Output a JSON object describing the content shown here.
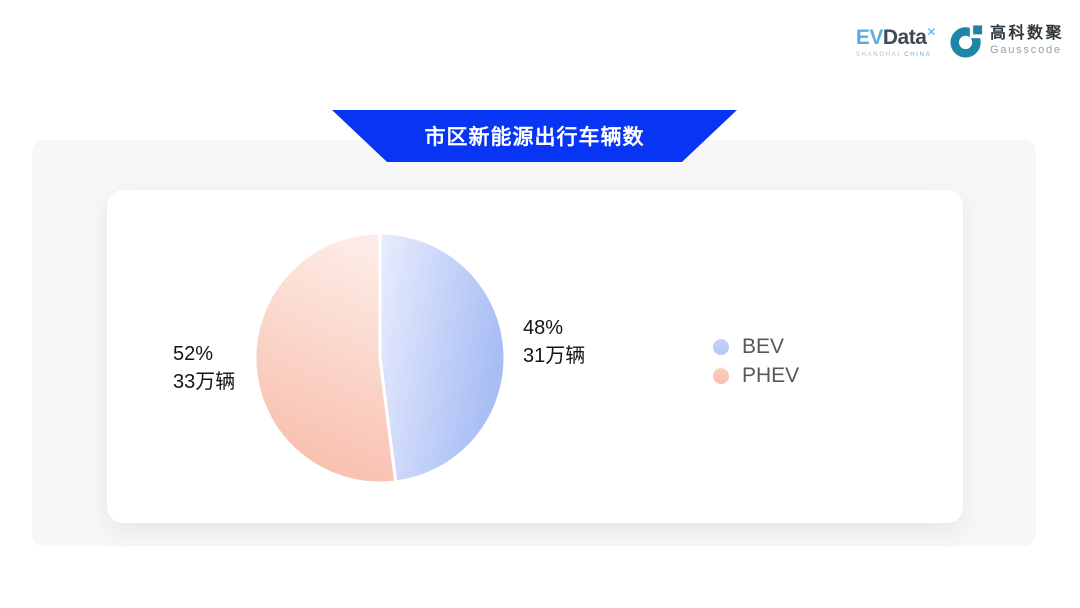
{
  "header": {
    "evdata": {
      "ev": "EV",
      "data": "Data",
      "sup": "✕",
      "subtext_left": "SHANGHAI",
      "subtext_right": "CHINA"
    },
    "gausscode": {
      "cn": "高科数聚",
      "en": "Gausscode",
      "mark_color": "#1d85a6"
    }
  },
  "banner": {
    "title": "市区新能源出行车辆数",
    "color": "#0834f4",
    "text_color": "#ffffff"
  },
  "chart_data": {
    "type": "pie",
    "title": "市区新能源出行车辆数",
    "legend_position": "right",
    "start_angle_deg": 0,
    "clockwise": true,
    "slices": [
      {
        "name": "BEV",
        "percent": 48,
        "percent_label": "48%",
        "value": 31,
        "unit": "万辆",
        "value_label": "31万辆",
        "gradient": [
          "#e9edfd",
          "#a8bdf5"
        ],
        "dot_gradient": [
          "#c7d3f9",
          "#b3c4f7"
        ]
      },
      {
        "name": "PHEV",
        "percent": 52,
        "percent_label": "52%",
        "value": 33,
        "unit": "万辆",
        "value_label": "33万辆",
        "gradient": [
          "#fdece6",
          "#f8bcaa"
        ],
        "dot_gradient": [
          "#fccfc0",
          "#f9bdac"
        ]
      }
    ]
  },
  "styles": {
    "panel_bg": "#f7f7f8",
    "card_bg": "#ffffff",
    "label_color": "#141414",
    "legend_text_color": "#55585c"
  }
}
